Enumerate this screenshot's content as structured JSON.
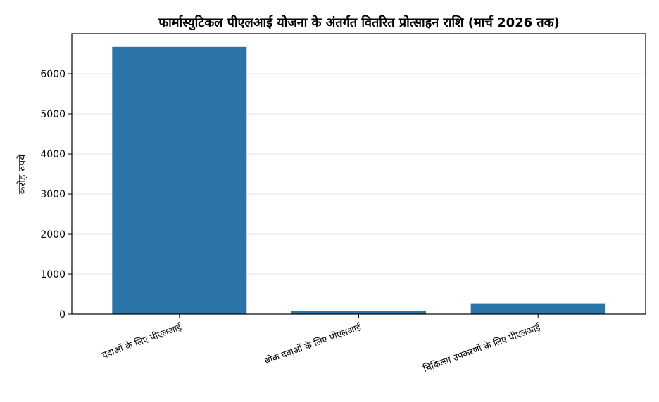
{
  "chart_data": {
    "type": "bar",
    "title": "फार्मास्युटिकल पीएलआई योजना के अंतर्गत वितरित प्रोत्साहन राशि (मार्च 2026 तक)",
    "ylabel": "करोड़ रुपये",
    "xlabel": "",
    "categories": [
      "दवाओं के लिए पीएलआई",
      "थोक दवाओं के लिए पीएलआई",
      "चिकित्सा उपकरणों के लिए पीएलआई"
    ],
    "values": [
      6670,
      85,
      270
    ],
    "ylim": [
      0,
      7000
    ],
    "yticks": [
      0,
      1000,
      2000,
      3000,
      4000,
      5000,
      6000
    ],
    "grid": true,
    "bar_color": "#2a74a8"
  }
}
